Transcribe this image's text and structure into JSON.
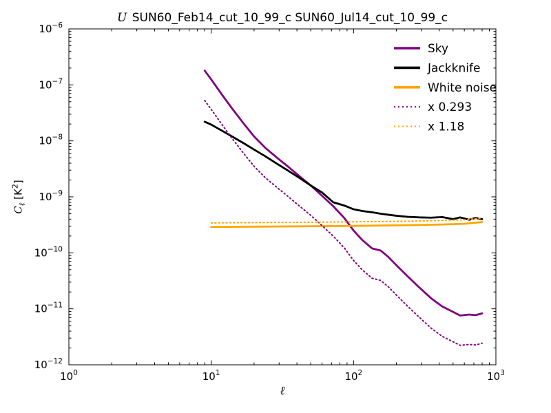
{
  "figure": {
    "title": {
      "math_prefix": "U",
      "text": " SUN60_Feb14_cut_10_99_c SUN60_Jul14_cut_10_99_c"
    },
    "ylabel_parts": {
      "var": "C",
      "sub": "ℓ",
      "unit_open": " [K",
      "unit_sup": "2",
      "unit_close": "]"
    }
  },
  "chart_data": {
    "type": "line",
    "title": "U SUN60_Feb14_cut_10_99_c SUN60_Jul14_cut_10_99_c",
    "xlabel": "ℓ",
    "ylabel": "C_ℓ [K²]",
    "xscale": "log",
    "yscale": "log",
    "xlim": [
      1,
      1000
    ],
    "ylim": [
      1e-12,
      1e-06
    ],
    "grid": false,
    "legend_position": "upper right",
    "x_tick_exponents": [
      0,
      1,
      2,
      3
    ],
    "y_tick_exponents": [
      -6,
      -7,
      -8,
      -9,
      -10,
      -11,
      -12
    ],
    "series": [
      {
        "name": "Sky",
        "color": "#800080",
        "style": "solid",
        "width": 2.8,
        "x": [
          9,
          10,
          12,
          14,
          17,
          20,
          24,
          29,
          35,
          42,
          50,
          60,
          72,
          86,
          100,
          115,
          135,
          155,
          175,
          200,
          240,
          290,
          350,
          420,
          500,
          560,
          650,
          720,
          800
        ],
        "y": [
          1.8e-07,
          1.25e-07,
          6.5e-08,
          3.8e-08,
          2e-08,
          1.2e-08,
          7.5e-09,
          5e-09,
          3.4e-09,
          2.3e-09,
          1.6e-09,
          1.05e-09,
          6.8e-10,
          4.2e-10,
          2.5e-10,
          1.7e-10,
          1.2e-10,
          1.1e-10,
          8.5e-11,
          6e-11,
          3.8e-11,
          2.4e-11,
          1.55e-11,
          1.1e-11,
          8.8e-12,
          7.6e-12,
          7.9e-12,
          7.7e-12,
          8.3e-12
        ]
      },
      {
        "name": "Jackknife",
        "color": "#000000",
        "style": "solid",
        "width": 2.8,
        "x": [
          9,
          10,
          12,
          14,
          17,
          20,
          24,
          29,
          35,
          42,
          50,
          60,
          72,
          86,
          100,
          115,
          135,
          155,
          175,
          200,
          240,
          290,
          350,
          420,
          500,
          560,
          650,
          720,
          800
        ],
        "y": [
          2.2e-08,
          1.95e-08,
          1.5e-08,
          1.2e-08,
          9e-09,
          7e-09,
          5.3e-09,
          3.9e-09,
          2.9e-09,
          2.15e-09,
          1.6e-09,
          1.2e-09,
          8e-10,
          7e-10,
          6e-10,
          5.6e-10,
          5.3e-10,
          5e-10,
          4.8e-10,
          4.6e-10,
          4.4e-10,
          4.3e-10,
          4.25e-10,
          4.35e-10,
          4e-10,
          4.3e-10,
          3.9e-10,
          4.2e-10,
          4e-10
        ]
      },
      {
        "name": "White noise",
        "color": "#ffa500",
        "style": "solid",
        "width": 2.8,
        "x": [
          10,
          15,
          25,
          40,
          60,
          100,
          150,
          250,
          400,
          600,
          800
        ],
        "y": [
          2.9e-10,
          2.92e-10,
          2.95e-10,
          2.97e-10,
          3e-10,
          3.03e-10,
          3.07e-10,
          3.12e-10,
          3.2e-10,
          3.3e-10,
          3.55e-10
        ]
      },
      {
        "name": "x 0.293",
        "color": "#800080",
        "style": "dotted",
        "width": 2.0,
        "x": [
          9,
          10,
          12,
          14,
          17,
          20,
          24,
          29,
          35,
          42,
          50,
          60,
          72,
          86,
          100,
          115,
          135,
          155,
          175,
          200,
          240,
          290,
          350,
          420,
          500,
          560,
          650,
          720,
          800
        ],
        "y": [
          5.27e-08,
          3.66e-08,
          1.9e-08,
          1.11e-08,
          5.86e-09,
          3.52e-09,
          2.2e-09,
          1.47e-09,
          9.96e-10,
          6.74e-10,
          4.69e-10,
          3.08e-10,
          1.99e-10,
          1.23e-10,
          7.33e-11,
          4.98e-11,
          3.52e-11,
          3.22e-11,
          2.49e-11,
          1.76e-11,
          1.11e-11,
          7.03e-12,
          4.54e-12,
          3.22e-12,
          2.58e-12,
          2.23e-12,
          2.31e-12,
          2.26e-12,
          2.43e-12
        ]
      },
      {
        "name": "x 1.18",
        "color": "#ffa500",
        "style": "dotted",
        "width": 2.0,
        "x": [
          10,
          15,
          25,
          40,
          60,
          100,
          150,
          250,
          400,
          600,
          800
        ],
        "y": [
          3.42e-10,
          3.45e-10,
          3.48e-10,
          3.5e-10,
          3.54e-10,
          3.58e-10,
          3.62e-10,
          3.68e-10,
          3.78e-10,
          3.89e-10,
          4.19e-10
        ]
      }
    ]
  }
}
